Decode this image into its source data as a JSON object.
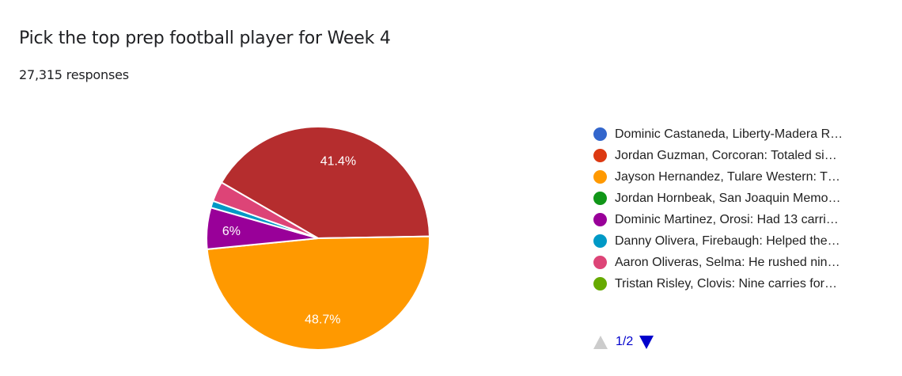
{
  "header": {
    "title": "Pick the top prep football player for Week 4",
    "responses": "27,315 responses"
  },
  "pager": {
    "page_label": "1/2",
    "prev_icon": "triangle-up-icon",
    "next_icon": "triangle-down-icon"
  },
  "legend": {
    "items": [
      {
        "label": "Dominic Castaneda, Liberty-Madera R…",
        "color": "#3366cc"
      },
      {
        "label": "Jordan Guzman, Corcoran: Totaled si…",
        "color": "#dc3912"
      },
      {
        "label": "Jayson Hernandez, Tulare Western: T…",
        "color": "#ff9900"
      },
      {
        "label": "Jordan Hornbeak, San Joaquin Memo…",
        "color": "#109618"
      },
      {
        "label": "Dominic Martinez, Orosi: Had 13 carri…",
        "color": "#990099"
      },
      {
        "label": "Danny Olivera, Firebaugh: Helped the…",
        "color": "#0099c6"
      },
      {
        "label": "Aaron Oliveras, Selma: He rushed nin…",
        "color": "#dd4477"
      },
      {
        "label": "Tristan Risley, Clovis: Nine carries for…",
        "color": "#66aa00"
      }
    ]
  },
  "chart_data": {
    "type": "pie",
    "title": "Pick the top prep football player for Week 4",
    "subtitle": "27,315 responses",
    "categories": [
      "Dominic Castaneda, Liberty-Madera R…",
      "Jordan Guzman, Corcoran: Totaled si…",
      "Jayson Hernandez, Tulare Western: T…",
      "Jordan Hornbeak, San Joaquin Memo…",
      "Dominic Martinez, Orosi: Had 13 carri…",
      "Danny Olivera, Firebaugh: Helped the…",
      "Aaron Oliveras, Selma: He rushed nin…",
      "Tristan Risley, Clovis: Nine carries for…"
    ],
    "values": [
      0,
      41.4,
      48.7,
      0,
      6.0,
      1.0,
      2.9,
      0
    ],
    "slice_colors": [
      "#3366cc",
      "#b52d2e",
      "#ff9900",
      "#109618",
      "#990099",
      "#0099c6",
      "#dd4477",
      "#66aa00"
    ],
    "data_labels": [
      "",
      "41.4%",
      "48.7%",
      "",
      "6%",
      "",
      "",
      ""
    ],
    "start_angle_deg": 300,
    "legend_position": "right",
    "legend_page": "1/2"
  }
}
